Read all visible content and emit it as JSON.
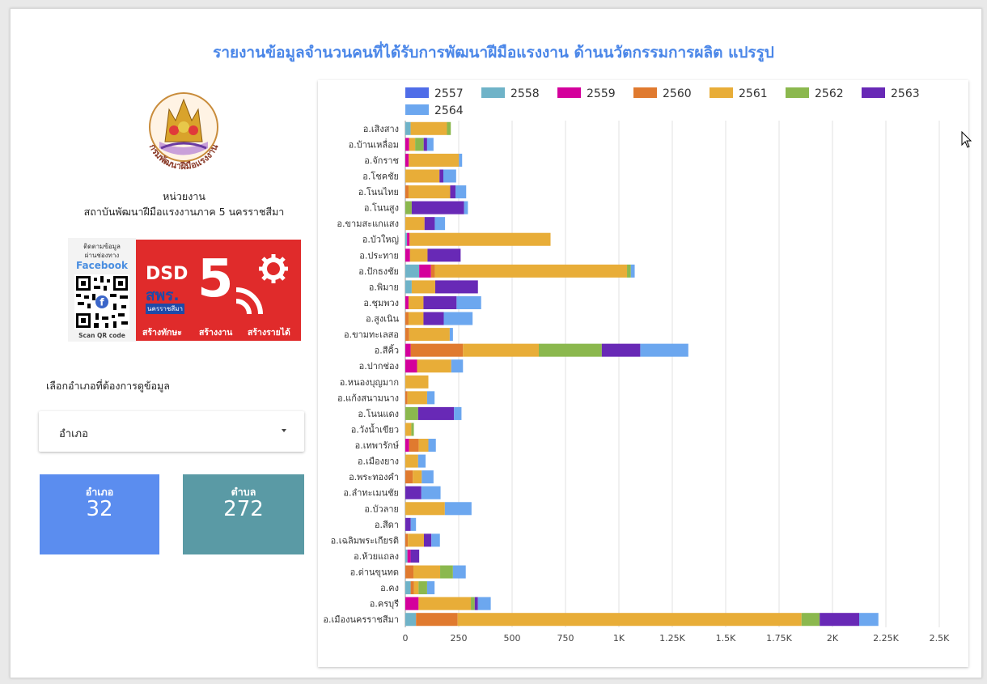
{
  "report": {
    "title": "รายงานข้อมูลจำนวนคนที่ได้รับการพัฒนาฝีมือแรงงาน ด้านนวัตกรรมการผลิต แปรรูป"
  },
  "sidebar": {
    "logo_text": "กรมพัฒนาฝีมือแรงงาน",
    "unit_label": "หน่วยงาน",
    "unit_name": "สถาบันพัฒนาฝีมือแรงงานภาค 5 นครราชสีมา",
    "banner": {
      "follow_text_1": "ติดตามข้อมูล",
      "follow_text_2": "ผ่านช่องทาง",
      "facebook": "Facebook",
      "scan": "Scan QR code",
      "dsd": "DSD",
      "swr": "สพร.",
      "province": "นครราชสีมา",
      "number": "5",
      "slogan_1": "สร้างทักษะ",
      "slogan_2": "สร้างงาน",
      "slogan_3": "สร้างรายได้"
    },
    "select_label": "เลือกอำเภอที่ต้องการดูข้อมูล",
    "dropdown_value": "อำเภอ",
    "cards": [
      {
        "label": "อำเภอ",
        "value": "32",
        "color": "#5b8def"
      },
      {
        "label": "ตำบล",
        "value": "272",
        "color": "#5a9aa5"
      }
    ]
  },
  "chart_data": {
    "type": "bar",
    "orientation": "horizontal",
    "stacked": true,
    "title": "",
    "xlim": [
      0,
      2500
    ],
    "x_ticks": [
      0,
      250,
      500,
      750,
      1000,
      1250,
      1500,
      1750,
      2000,
      2250,
      2500
    ],
    "x_tick_labels": [
      "0",
      "250",
      "500",
      "750",
      "1K",
      "1.25K",
      "1.5K",
      "1.75K",
      "2K",
      "2.25K",
      "2.5K"
    ],
    "legend_position": "top",
    "categories": [
      "อ.เสิงสาง",
      "อ.บ้านเหลื่อม",
      "อ.จักราช",
      "อ.โชคชัย",
      "อ.โนนไทย",
      "อ.โนนสูง",
      "อ.ขามสะแกแสง",
      "อ.บัวใหญ่",
      "อ.ประทาย",
      "อ.ปักธงชัย",
      "อ.พิมาย",
      "อ.ชุมพวง",
      "อ.สูงเนิน",
      "อ.ขามทะเลสอ",
      "อ.สีคิ้ว",
      "อ.ปากช่อง",
      "อ.หนองบุญมาก",
      "อ.แก้งสนามนาง",
      "อ.โนนแดง",
      "อ.วังน้ำเขียว",
      "อ.เทพารักษ์",
      "อ.เมืองยาง",
      "อ.พระทองคำ",
      "อ.ลำทะเมนชัย",
      "อ.บัวลาย",
      "อ.สีดา",
      "อ.เฉลิมพระเกียรติ",
      "อ.ห้วยแถลง",
      "อ.ด่านขุนทด",
      "อ.คง",
      "อ.ครบุรี",
      "อ.เมืองนครราชสีมา"
    ],
    "series": [
      {
        "name": "2557",
        "color": "#4f6de8",
        "values": [
          0,
          0,
          0,
          0,
          0,
          0,
          0,
          0,
          0,
          0,
          0,
          0,
          0,
          0,
          0,
          0,
          0,
          0,
          0,
          0,
          0,
          0,
          0,
          0,
          0,
          0,
          0,
          0,
          0,
          0,
          0,
          0
        ]
      },
      {
        "name": "2558",
        "color": "#6fb3c8",
        "values": [
          25,
          0,
          0,
          0,
          0,
          0,
          0,
          8,
          0,
          65,
          30,
          0,
          0,
          0,
          0,
          0,
          0,
          0,
          0,
          0,
          0,
          0,
          0,
          0,
          0,
          0,
          0,
          10,
          0,
          25,
          0,
          50
        ]
      },
      {
        "name": "2559",
        "color": "#d4009c",
        "values": [
          0,
          18,
          16,
          0,
          0,
          0,
          0,
          12,
          22,
          55,
          0,
          15,
          0,
          0,
          25,
          55,
          0,
          0,
          0,
          0,
          18,
          0,
          0,
          0,
          0,
          0,
          0,
          15,
          0,
          0,
          62,
          0
        ]
      },
      {
        "name": "2560",
        "color": "#e07a2f",
        "values": [
          0,
          0,
          0,
          0,
          15,
          0,
          0,
          0,
          0,
          18,
          0,
          0,
          15,
          18,
          245,
          0,
          0,
          10,
          0,
          0,
          45,
          0,
          35,
          0,
          0,
          0,
          12,
          0,
          38,
          15,
          0,
          195
        ]
      },
      {
        "name": "2561",
        "color": "#e8ad38",
        "values": [
          170,
          28,
          235,
          160,
          195,
          0,
          90,
          660,
          82,
          900,
          110,
          70,
          70,
          190,
          355,
          160,
          108,
          92,
          0,
          28,
          45,
          60,
          42,
          0,
          185,
          0,
          75,
          0,
          125,
          22,
          245,
          1610
        ]
      },
      {
        "name": "2562",
        "color": "#8bb84e",
        "values": [
          18,
          40,
          0,
          0,
          0,
          30,
          0,
          0,
          0,
          18,
          0,
          0,
          0,
          0,
          295,
          0,
          0,
          0,
          60,
          12,
          0,
          0,
          0,
          0,
          0,
          0,
          0,
          0,
          60,
          40,
          18,
          85
        ]
      },
      {
        "name": "2563",
        "color": "#6829b6",
        "values": [
          0,
          16,
          0,
          18,
          25,
          245,
          48,
          0,
          155,
          0,
          200,
          155,
          95,
          0,
          180,
          0,
          0,
          0,
          168,
          0,
          0,
          0,
          0,
          75,
          0,
          25,
          35,
          40,
          0,
          0,
          15,
          185
        ]
      },
      {
        "name": "2564",
        "color": "#6ca7ef",
        "values": [
          0,
          30,
          15,
          60,
          50,
          18,
          48,
          0,
          0,
          18,
          0,
          115,
          135,
          15,
          225,
          55,
          0,
          35,
          35,
          0,
          35,
          35,
          55,
          90,
          125,
          25,
          40,
          0,
          60,
          35,
          60,
          90
        ]
      }
    ]
  }
}
